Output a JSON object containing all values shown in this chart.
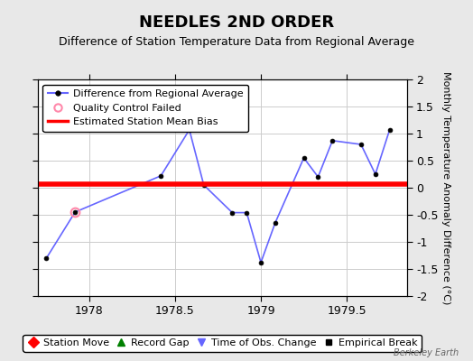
{
  "title": "NEEDLES 2ND ORDER",
  "subtitle": "Difference of Station Temperature Data from Regional Average",
  "ylabel": "Monthly Temperature Anomaly Difference (°C)",
  "credit": "Berkeley Earth",
  "xlim": [
    1977.7,
    1979.85
  ],
  "ylim": [
    -2,
    2
  ],
  "yticks": [
    -2,
    -1.5,
    -1,
    -0.5,
    0,
    0.5,
    1,
    1.5,
    2
  ],
  "xticks": [
    1978,
    1978.5,
    1979,
    1979.5
  ],
  "xticklabels": [
    "1978",
    "1978.5",
    "1979",
    "1979.5"
  ],
  "bias_value": 0.07,
  "line_color": "#6666ff",
  "bias_color": "#ff0000",
  "background_color": "#e8e8e8",
  "plot_bg_color": "#ffffff",
  "grid_color": "#cccccc",
  "data_x": [
    1977.75,
    1977.917,
    1978.417,
    1978.583,
    1978.667,
    1978.833,
    1978.917,
    1979.0,
    1979.083,
    1979.25,
    1979.333,
    1979.417,
    1979.583,
    1979.667,
    1979.75
  ],
  "data_y": [
    -1.3,
    -0.45,
    0.22,
    1.07,
    0.05,
    -0.46,
    -0.46,
    -1.38,
    -0.65,
    0.55,
    0.2,
    0.87,
    0.8,
    0.25,
    1.07
  ],
  "qc_failed_x": [
    1977.917
  ],
  "qc_failed_y": [
    -0.45
  ],
  "legend1_labels": [
    "Difference from Regional Average",
    "Quality Control Failed",
    "Estimated Station Mean Bias"
  ],
  "legend2_labels": [
    "Station Move",
    "Record Gap",
    "Time of Obs. Change",
    "Empirical Break"
  ],
  "title_fontsize": 13,
  "subtitle_fontsize": 9,
  "tick_fontsize": 9,
  "legend_fontsize": 8,
  "ylabel_fontsize": 8
}
